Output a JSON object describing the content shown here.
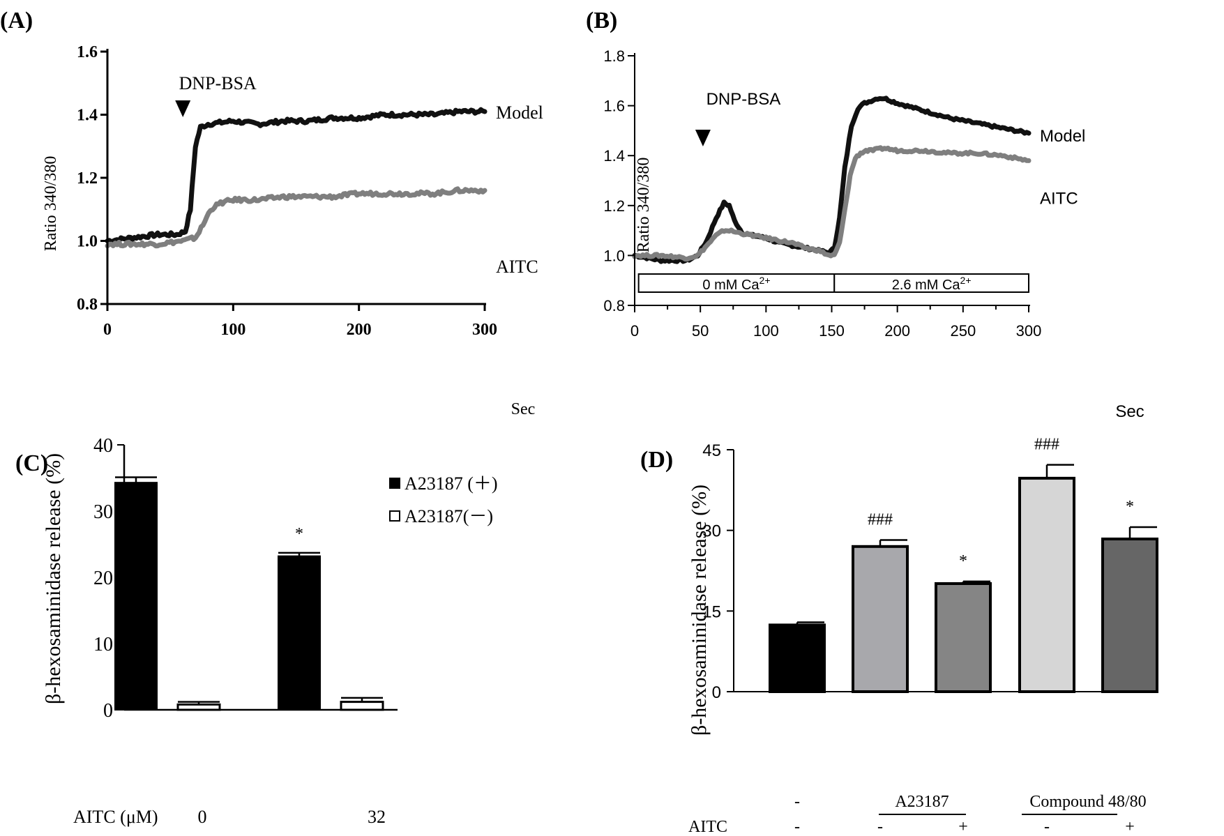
{
  "colors": {
    "model": "#111111",
    "aitc": "#7f7f7f",
    "axis": "#000000",
    "bar_black": "#000000",
    "bar_white": "#ffffff",
    "bar_d_a": "#a8a8ac",
    "bar_d_b": "#858585",
    "bar_d_c": "#d6d6d6",
    "bar_d_d": "#666666"
  },
  "panels": {
    "A": {
      "label": "(A)"
    },
    "B": {
      "label": "(B)"
    },
    "C": {
      "label": "(C)"
    },
    "D": {
      "label": "(D)"
    }
  },
  "chart_data": [
    {
      "id": "A",
      "type": "line",
      "title": "",
      "xlabel": "Sec",
      "ylabel": "Ratio 340/380",
      "xlim": [
        0,
        300
      ],
      "ylim": [
        0.8,
        1.6
      ],
      "xticks": [
        "0",
        "100",
        "200",
        "300"
      ],
      "yticks": [
        "0.8",
        "1.0",
        "1.2",
        "1.4",
        "1.6"
      ],
      "annotation": {
        "text": "DNP-BSA",
        "x": 60
      },
      "series": [
        {
          "name": "Model",
          "x": [
            0,
            20,
            40,
            55,
            62,
            66,
            70,
            74,
            80,
            100,
            120,
            140,
            160,
            180,
            200,
            220,
            240,
            260,
            280,
            300
          ],
          "y": [
            1.0,
            1.01,
            1.02,
            1.02,
            1.03,
            1.1,
            1.3,
            1.36,
            1.37,
            1.38,
            1.37,
            1.38,
            1.38,
            1.39,
            1.39,
            1.4,
            1.4,
            1.4,
            1.41,
            1.41
          ]
        },
        {
          "name": "AITC",
          "x": [
            0,
            20,
            40,
            60,
            70,
            76,
            82,
            90,
            100,
            120,
            140,
            160,
            180,
            200,
            220,
            240,
            260,
            280,
            300
          ],
          "y": [
            0.99,
            0.99,
            0.99,
            1.0,
            1.01,
            1.05,
            1.1,
            1.12,
            1.13,
            1.13,
            1.14,
            1.14,
            1.14,
            1.15,
            1.15,
            1.15,
            1.15,
            1.16,
            1.16
          ]
        }
      ]
    },
    {
      "id": "B",
      "type": "line",
      "title": "",
      "xlabel": "Sec",
      "ylabel": "Ratio 340/380",
      "xlim": [
        0,
        300
      ],
      "ylim": [
        0.8,
        1.8
      ],
      "xticks": [
        "0",
        "50",
        "100",
        "150",
        "200",
        "250",
        "300"
      ],
      "yticks": [
        "0.8",
        "1.0",
        "1.2",
        "1.4",
        "1.6",
        "1.8"
      ],
      "annotation": {
        "text": "DNP-BSA",
        "x": 52
      },
      "segments": [
        {
          "label": "0 mM Ca",
          "sup": "2+",
          "x0": 3,
          "x1": 152
        },
        {
          "label": "2.6 mM Ca",
          "sup": "2+",
          "x0": 152,
          "x1": 300
        }
      ],
      "series": [
        {
          "name": "Model",
          "x": [
            0,
            20,
            40,
            48,
            55,
            62,
            68,
            72,
            76,
            82,
            90,
            100,
            110,
            120,
            130,
            140,
            148,
            152,
            156,
            160,
            165,
            170,
            175,
            180,
            185,
            190,
            200,
            220,
            240,
            260,
            280,
            300
          ],
          "y": [
            1.0,
            0.98,
            0.98,
            1.0,
            1.06,
            1.15,
            1.21,
            1.2,
            1.14,
            1.09,
            1.08,
            1.07,
            1.05,
            1.04,
            1.03,
            1.02,
            1.01,
            1.03,
            1.15,
            1.35,
            1.52,
            1.59,
            1.61,
            1.62,
            1.63,
            1.63,
            1.61,
            1.58,
            1.55,
            1.53,
            1.51,
            1.49
          ]
        },
        {
          "name": "AITC",
          "x": [
            0,
            20,
            40,
            48,
            55,
            62,
            68,
            72,
            80,
            90,
            100,
            110,
            120,
            130,
            140,
            148,
            152,
            156,
            160,
            164,
            168,
            172,
            176,
            180,
            190,
            200,
            220,
            240,
            260,
            280,
            300
          ],
          "y": [
            1.0,
            1.0,
            0.99,
            1.0,
            1.04,
            1.08,
            1.1,
            1.1,
            1.09,
            1.08,
            1.07,
            1.06,
            1.05,
            1.03,
            1.02,
            1.0,
            1.0,
            1.05,
            1.18,
            1.32,
            1.39,
            1.41,
            1.42,
            1.42,
            1.43,
            1.42,
            1.42,
            1.41,
            1.41,
            1.4,
            1.38
          ]
        }
      ]
    },
    {
      "id": "C",
      "type": "bar",
      "xlabel": "AITC (μM)",
      "ylabel": "β-hexosaminidase release (%)",
      "ylim": [
        0,
        40
      ],
      "yticks": [
        "0",
        "10",
        "20",
        "30",
        "40"
      ],
      "categories": [
        "0",
        "32"
      ],
      "series": [
        {
          "name": "A23187 (＋)",
          "values": [
            34.3,
            23.2
          ],
          "errors": [
            0.8,
            0.5
          ],
          "marks": [
            "",
            "*"
          ]
        },
        {
          "name": "A23187(－)",
          "values": [
            0.8,
            1.2
          ],
          "errors": [
            0.4,
            0.6
          ],
          "marks": [
            "",
            ""
          ]
        }
      ]
    },
    {
      "id": "D",
      "type": "bar",
      "ylabel": "β-hexosaminidase release (%)",
      "ylim": [
        0,
        45
      ],
      "yticks": [
        "0",
        "15",
        "30",
        "45"
      ],
      "values": [
        12.4,
        27.0,
        20.1,
        39.7,
        28.4
      ],
      "errors": [
        0.5,
        1.2,
        0.4,
        2.5,
        2.2
      ],
      "marks": [
        "",
        "###",
        "*",
        "###",
        "*"
      ],
      "stimulus_row": [
        "-",
        "A23187",
        "Compound 48/80"
      ],
      "aitc_row_label": "AITC",
      "aitc_row": [
        "-",
        "-",
        "+",
        "-",
        "+"
      ]
    }
  ]
}
